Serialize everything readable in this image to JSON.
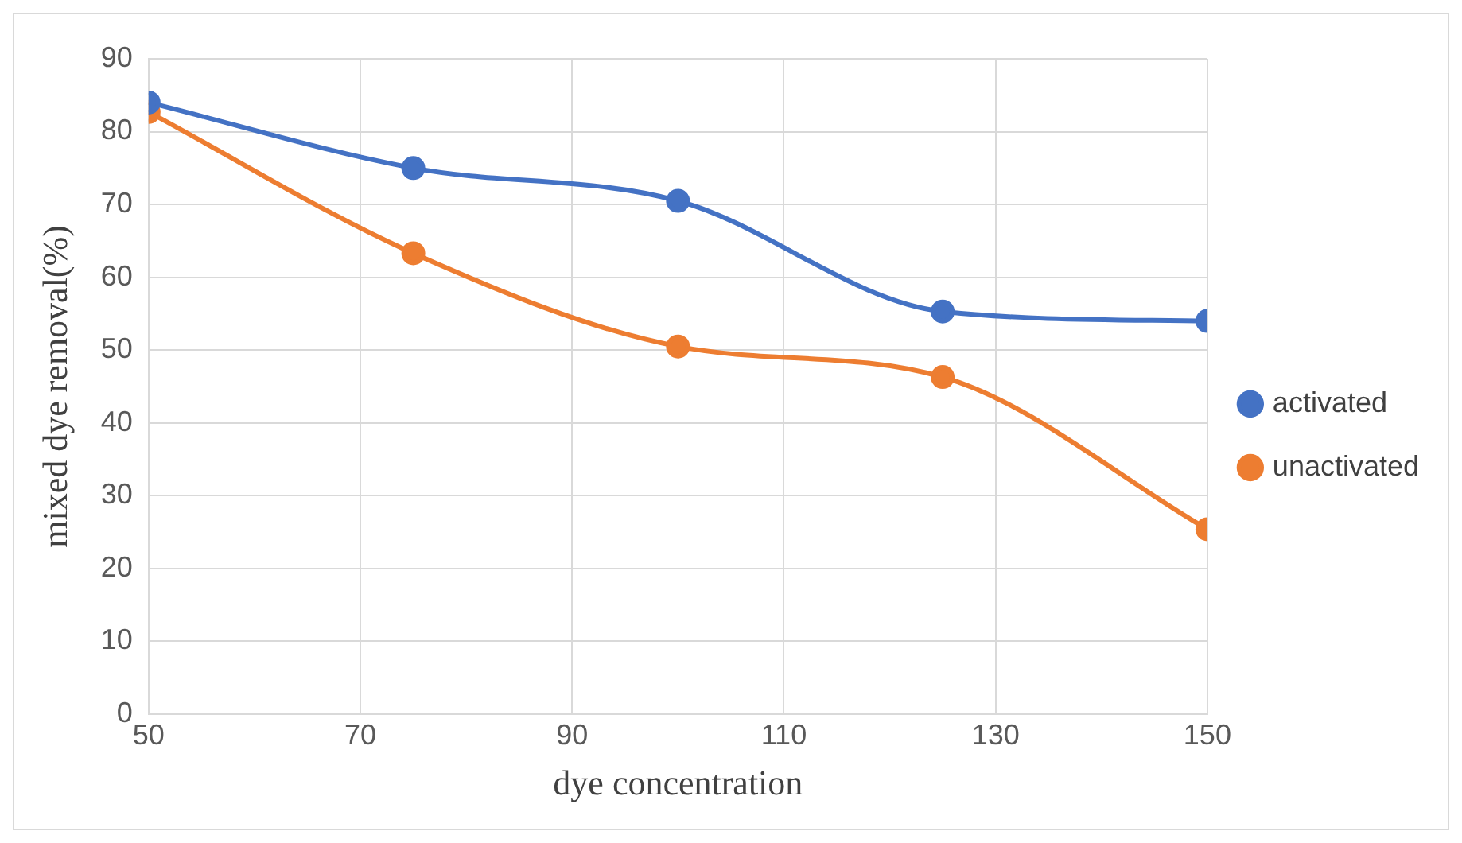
{
  "chart_data": {
    "type": "line",
    "xlabel": "dye concentration",
    "ylabel": "mixed dye removal(%)",
    "x": [
      50,
      75,
      100,
      125,
      150
    ],
    "series": [
      {
        "name": "activated",
        "color": "#4472c4",
        "values": [
          84,
          75,
          70.5,
          55.3,
          54
        ]
      },
      {
        "name": "unactivated",
        "color": "#ed7d31",
        "values": [
          82.7,
          63.3,
          50.5,
          46.3,
          25.4
        ]
      }
    ],
    "xlim": [
      50,
      150
    ],
    "xticks": [
      50,
      70,
      90,
      110,
      130,
      150
    ],
    "ylim": [
      0,
      90
    ],
    "yticks": [
      0,
      10,
      20,
      30,
      40,
      50,
      60,
      70,
      80,
      90
    ],
    "grid": true,
    "legend": "right",
    "marker": "circle",
    "line_style": "solid"
  }
}
